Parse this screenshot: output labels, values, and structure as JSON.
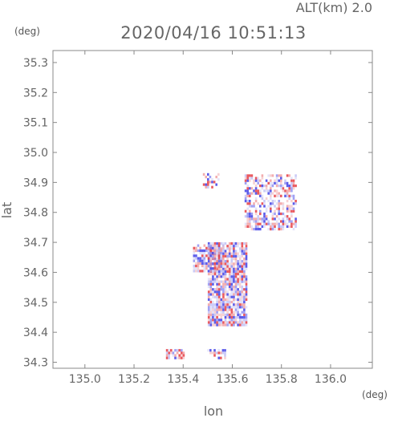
{
  "chart_data": {
    "type": "heatmap",
    "title": "2020/04/16 10:51:13",
    "altitude_label": "ALT(km) 2.0",
    "xlabel": "lon",
    "ylabel": "lat",
    "x_unit": "(deg)",
    "y_unit": "(deg)",
    "xlim": [
      134.87,
      136.17
    ],
    "ylim": [
      34.28,
      35.34
    ],
    "x_ticks": [
      "135.0",
      "135.2",
      "135.4",
      "135.6",
      "135.8",
      "136.0"
    ],
    "x_tick_values": [
      135.0,
      135.2,
      135.4,
      135.6,
      135.8,
      136.0
    ],
    "y_ticks": [
      "34.3",
      "34.4",
      "34.5",
      "34.6",
      "34.7",
      "34.8",
      "34.9",
      "35.0",
      "35.1",
      "35.2",
      "35.3"
    ],
    "y_tick_values": [
      34.3,
      34.4,
      34.5,
      34.6,
      34.7,
      34.8,
      34.9,
      35.0,
      35.1,
      35.2,
      35.3
    ],
    "grid": false,
    "colors": {
      "positive": "#e8474c",
      "negative": "#4a4ae8",
      "neutral": "#c9c9ee"
    },
    "clusters": [
      {
        "lon": [
          135.5,
          135.66
        ],
        "lat": [
          34.42,
          34.7
        ],
        "density": 0.85
      },
      {
        "lon": [
          135.44,
          135.56
        ],
        "lat": [
          34.6,
          34.69
        ],
        "density": 0.75
      },
      {
        "lon": [
          135.65,
          135.86
        ],
        "lat": [
          34.74,
          34.92
        ],
        "density": 0.55
      },
      {
        "lon": [
          135.48,
          135.54
        ],
        "lat": [
          34.88,
          34.93
        ],
        "density": 0.45
      },
      {
        "lon": [
          135.33,
          135.4
        ],
        "lat": [
          34.31,
          34.34
        ],
        "density": 0.6
      },
      {
        "lon": [
          135.49,
          135.57
        ],
        "lat": [
          34.31,
          34.34
        ],
        "density": 0.5
      }
    ]
  }
}
